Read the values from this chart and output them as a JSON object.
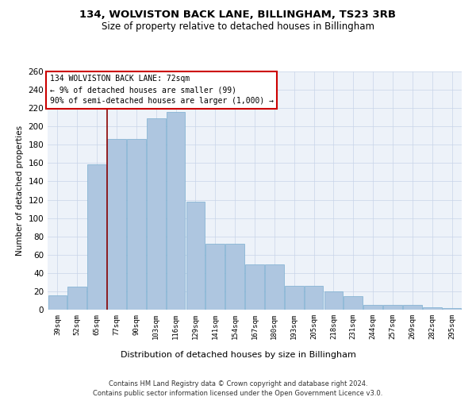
{
  "title1": "134, WOLVISTON BACK LANE, BILLINGHAM, TS23 3RB",
  "title2": "Size of property relative to detached houses in Billingham",
  "xlabel": "Distribution of detached houses by size in Billingham",
  "ylabel": "Number of detached properties",
  "categories": [
    "39sqm",
    "52sqm",
    "65sqm",
    "77sqm",
    "90sqm",
    "103sqm",
    "116sqm",
    "129sqm",
    "141sqm",
    "154sqm",
    "167sqm",
    "180sqm",
    "193sqm",
    "205sqm",
    "218sqm",
    "231sqm",
    "244sqm",
    "257sqm",
    "269sqm",
    "282sqm",
    "295sqm"
  ],
  "values": [
    16,
    25,
    159,
    186,
    186,
    209,
    216,
    118,
    72,
    72,
    49,
    49,
    26,
    26,
    20,
    15,
    5,
    5,
    5,
    3,
    2
  ],
  "bar_color": "#aec6e0",
  "bar_edge_color": "#7aaed0",
  "vline_color": "#8b0000",
  "annotation_text": "134 WOLVISTON BACK LANE: 72sqm\n← 9% of detached houses are smaller (99)\n90% of semi-detached houses are larger (1,000) →",
  "annotation_box_color": "#ffffff",
  "annotation_box_edge": "#cc0000",
  "footer1": "Contains HM Land Registry data © Crown copyright and database right 2024.",
  "footer2": "Contains public sector information licensed under the Open Government Licence v3.0.",
  "bg_color": "#edf2f9",
  "ylim": [
    0,
    260
  ],
  "yticks": [
    0,
    20,
    40,
    60,
    80,
    100,
    120,
    140,
    160,
    180,
    200,
    220,
    240,
    260
  ]
}
